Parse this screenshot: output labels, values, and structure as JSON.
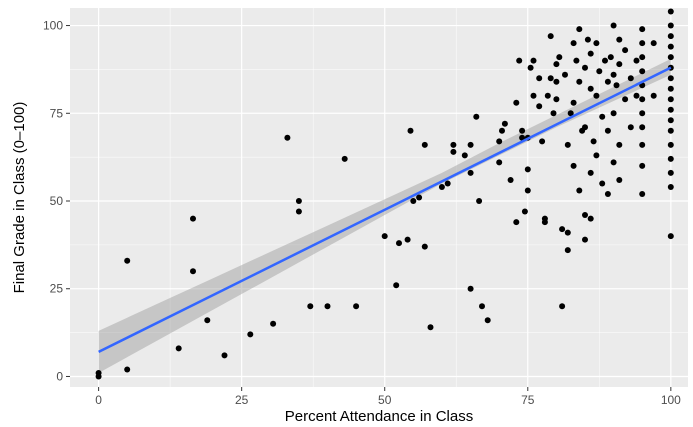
{
  "chart_data": {
    "type": "scatter",
    "title": "",
    "xlabel": "Percent Attendance in Class",
    "ylabel": "Final Grade in Class (0–100)",
    "xlim": [
      -5,
      103
    ],
    "ylim": [
      -3,
      105
    ],
    "x_ticks": [
      0,
      25,
      50,
      75,
      100
    ],
    "x_tick_labels": [
      "0",
      "25",
      "50",
      "75",
      "100"
    ],
    "y_ticks": [
      0,
      25,
      50,
      75,
      100
    ],
    "y_tick_labels": [
      "0",
      "25",
      "50",
      "75",
      "100"
    ],
    "grid": true,
    "legend": "none",
    "points": [
      [
        0,
        1
      ],
      [
        0,
        0
      ],
      [
        5,
        33
      ],
      [
        5,
        2
      ],
      [
        14,
        8
      ],
      [
        16.5,
        45
      ],
      [
        16.5,
        30
      ],
      [
        19,
        16
      ],
      [
        22,
        6
      ],
      [
        26.5,
        12
      ],
      [
        30.5,
        15
      ],
      [
        33,
        68
      ],
      [
        35,
        50
      ],
      [
        35,
        47
      ],
      [
        37,
        20
      ],
      [
        40,
        20
      ],
      [
        43,
        62
      ],
      [
        45,
        20
      ],
      [
        50,
        40
      ],
      [
        52,
        26
      ],
      [
        52.5,
        38
      ],
      [
        54,
        39
      ],
      [
        54.5,
        70
      ],
      [
        55,
        50
      ],
      [
        56,
        51
      ],
      [
        57,
        66
      ],
      [
        57,
        37
      ],
      [
        58,
        14
      ],
      [
        60,
        54
      ],
      [
        61,
        55
      ],
      [
        62,
        66
      ],
      [
        62,
        64
      ],
      [
        64,
        63
      ],
      [
        65,
        66
      ],
      [
        65,
        58
      ],
      [
        65,
        25
      ],
      [
        66,
        74
      ],
      [
        66.5,
        50
      ],
      [
        67,
        20
      ],
      [
        68,
        16
      ],
      [
        70,
        67
      ],
      [
        70,
        61
      ],
      [
        70.5,
        70
      ],
      [
        71,
        72
      ],
      [
        72,
        56
      ],
      [
        73,
        44
      ],
      [
        73,
        78
      ],
      [
        73.5,
        90
      ],
      [
        74,
        70
      ],
      [
        74,
        68
      ],
      [
        74.5,
        47
      ],
      [
        75,
        68
      ],
      [
        75,
        59
      ],
      [
        75,
        53
      ],
      [
        75.5,
        88
      ],
      [
        76,
        80
      ],
      [
        76,
        90
      ],
      [
        77,
        77
      ],
      [
        77,
        85
      ],
      [
        77.5,
        67
      ],
      [
        78,
        44
      ],
      [
        78,
        45
      ],
      [
        78.5,
        80
      ],
      [
        79,
        97
      ],
      [
        79,
        85
      ],
      [
        79.5,
        75
      ],
      [
        80,
        89
      ],
      [
        80,
        84
      ],
      [
        80,
        79
      ],
      [
        80.5,
        91
      ],
      [
        81,
        42
      ],
      [
        81,
        20
      ],
      [
        81.5,
        86
      ],
      [
        82,
        66
      ],
      [
        82,
        41
      ],
      [
        82,
        36
      ],
      [
        82.5,
        75
      ],
      [
        83,
        95
      ],
      [
        83,
        78
      ],
      [
        83,
        60
      ],
      [
        83.5,
        90
      ],
      [
        84,
        84
      ],
      [
        84,
        99
      ],
      [
        84,
        53
      ],
      [
        84.5,
        70
      ],
      [
        85,
        88
      ],
      [
        85,
        71
      ],
      [
        85,
        46
      ],
      [
        85,
        39
      ],
      [
        85.5,
        96
      ],
      [
        86,
        92
      ],
      [
        86,
        82
      ],
      [
        86,
        58
      ],
      [
        86,
        45
      ],
      [
        86.5,
        67
      ],
      [
        87,
        95
      ],
      [
        87,
        80
      ],
      [
        87,
        63
      ],
      [
        87.5,
        87
      ],
      [
        88,
        74
      ],
      [
        88,
        55
      ],
      [
        88.5,
        90
      ],
      [
        89,
        84
      ],
      [
        89,
        70
      ],
      [
        89,
        52
      ],
      [
        89.5,
        91
      ],
      [
        90,
        100
      ],
      [
        90,
        86
      ],
      [
        90,
        75
      ],
      [
        90,
        61
      ],
      [
        90.5,
        83
      ],
      [
        91,
        96
      ],
      [
        91,
        89
      ],
      [
        91,
        66
      ],
      [
        91,
        56
      ],
      [
        92,
        93
      ],
      [
        92,
        79
      ],
      [
        93,
        85
      ],
      [
        93,
        71
      ],
      [
        94,
        90
      ],
      [
        94,
        80
      ],
      [
        95,
        99
      ],
      [
        95,
        95
      ],
      [
        95,
        91
      ],
      [
        95,
        87
      ],
      [
        95,
        83
      ],
      [
        95,
        79
      ],
      [
        95,
        75
      ],
      [
        95,
        71
      ],
      [
        95,
        66
      ],
      [
        95,
        60
      ],
      [
        95,
        52
      ],
      [
        97,
        95
      ],
      [
        97,
        80
      ],
      [
        100,
        104
      ],
      [
        100,
        100
      ],
      [
        100,
        97
      ],
      [
        100,
        94
      ],
      [
        100,
        91
      ],
      [
        100,
        88
      ],
      [
        100,
        85
      ],
      [
        100,
        82
      ],
      [
        100,
        79
      ],
      [
        100,
        76
      ],
      [
        100,
        73
      ],
      [
        100,
        70
      ],
      [
        100,
        66
      ],
      [
        100,
        62
      ],
      [
        100,
        58
      ],
      [
        100,
        54
      ],
      [
        100,
        40
      ]
    ],
    "trend_line": {
      "x": [
        0,
        100
      ],
      "y": [
        7,
        88
      ]
    },
    "confidence_band": {
      "x": [
        0,
        10,
        20,
        30,
        40,
        50,
        60,
        70,
        80,
        90,
        100
      ],
      "lower": [
        1,
        10,
        19,
        28,
        37,
        46,
        55,
        63,
        71,
        78.5,
        86
      ],
      "upper": [
        13,
        20.5,
        28,
        35.5,
        43,
        50.5,
        58,
        66.5,
        74.5,
        82.5,
        90.5
      ]
    },
    "colors": {
      "panel_background": "#ebebeb",
      "grid_major": "#ffffff",
      "points": "#000000",
      "trend_line": "#3366ff",
      "confidence_band": "#999999"
    }
  }
}
